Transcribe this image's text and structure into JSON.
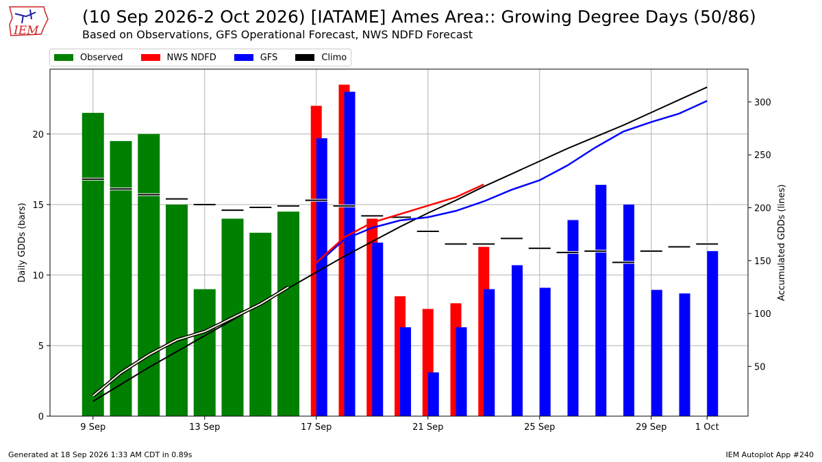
{
  "header": {
    "title": "(10 Sep 2026-2 Oct 2026) [IATAME] Ames Area:: Growing Degree Days (50/86)",
    "subtitle": "Based on Observations, GFS Operational Forecast, NWS NDFD Forecast",
    "logo_text": "IEM"
  },
  "footer": {
    "left": "Generated at 18 Sep 2026 1:33 AM CDT in 0.89s",
    "right": "IEM Autoplot App #240"
  },
  "colors": {
    "observed": "#008000",
    "ndfd": "#ff0000",
    "gfs": "#0000ff",
    "climo": "#000000",
    "grid": "#b0b0b0",
    "logo": "#cc2222"
  },
  "chart_data": {
    "type": "bar",
    "ylabel_left": "Daily GDDs (bars)",
    "ylabel_right": "Accumulated GDDs (lines)",
    "ylim_left": [
      0,
      24.6
    ],
    "ylim_right": [
      3,
      331
    ],
    "yticks_left": [
      0,
      5,
      10,
      15,
      20
    ],
    "yticks_right": [
      50,
      100,
      150,
      200,
      250,
      300
    ],
    "x_start": "8 Sep",
    "x_end": "4 Oct",
    "xticks": [
      {
        "day": 1,
        "label": "9 Sep"
      },
      {
        "day": 5,
        "label": "13 Sep"
      },
      {
        "day": 9,
        "label": "17 Sep"
      },
      {
        "day": 13,
        "label": "21 Sep"
      },
      {
        "day": 17,
        "label": "25 Sep"
      },
      {
        "day": 21,
        "label": "29 Sep"
      },
      {
        "day": 23,
        "label": "1 Oct"
      }
    ],
    "grid": true,
    "legend_position": "top-left above plot",
    "legend": [
      "Observed",
      "NWS NDFD",
      "GFS",
      "Climo"
    ],
    "observed": {
      "name": "Observed",
      "dates": [
        "10 Sep",
        "11 Sep",
        "12 Sep",
        "13 Sep",
        "14 Sep",
        "15 Sep",
        "16 Sep",
        "17 Sep"
      ],
      "daily": [
        21.5,
        19.5,
        20.0,
        15.0,
        9.0,
        14.0,
        13.0,
        14.5
      ],
      "accum": [
        22,
        44,
        61,
        75,
        83,
        96,
        109,
        125
      ]
    },
    "ndfd": {
      "name": "NWS NDFD",
      "dates": [
        "18 Sep",
        "19 Sep",
        "20 Sep",
        "21 Sep",
        "22 Sep",
        "23 Sep",
        "24 Sep"
      ],
      "daily": [
        22.0,
        23.5,
        14.0,
        8.5,
        7.6,
        8.0,
        12.0
      ],
      "accum": [
        148,
        172,
        186,
        194,
        202,
        210,
        222
      ]
    },
    "gfs": {
      "name": "GFS",
      "dates": [
        "18 Sep",
        "19 Sep",
        "20 Sep",
        "21 Sep",
        "22 Sep",
        "23 Sep",
        "24 Sep",
        "25 Sep",
        "26 Sep",
        "27 Sep",
        "28 Sep",
        "29 Sep",
        "30 Sep",
        "1 Oct",
        "2 Oct"
      ],
      "daily": [
        19.7,
        23.0,
        12.3,
        6.3,
        3.1,
        6.3,
        9.0,
        10.7,
        9.1,
        13.9,
        16.4,
        15.0,
        8.95,
        8.7,
        11.7
      ],
      "accum": [
        146,
        170,
        181,
        188,
        191,
        197,
        206,
        217,
        226,
        240,
        257,
        272,
        281,
        289,
        301
      ]
    },
    "climo": {
      "name": "Climo",
      "dates": [
        "10 Sep",
        "11 Sep",
        "12 Sep",
        "13 Sep",
        "14 Sep",
        "15 Sep",
        "16 Sep",
        "17 Sep",
        "18 Sep",
        "19 Sep",
        "20 Sep",
        "21 Sep",
        "22 Sep",
        "23 Sep",
        "24 Sep",
        "25 Sep",
        "26 Sep",
        "27 Sep",
        "28 Sep",
        "29 Sep",
        "30 Sep",
        "1 Oct",
        "2 Oct"
      ],
      "daily": [
        16.8,
        16.1,
        15.7,
        15.4,
        15.0,
        14.6,
        14.8,
        14.9,
        15.3,
        14.9,
        14.2,
        14.1,
        13.1,
        12.2,
        12.2,
        12.6,
        11.9,
        11.6,
        11.7,
        10.9,
        11.7,
        12.0,
        12.2
      ],
      "accum": [
        17,
        33,
        49,
        64,
        79,
        94,
        109,
        124,
        139,
        154,
        168,
        182,
        195,
        207,
        220,
        232,
        244,
        256,
        267,
        278,
        290,
        302,
        314
      ]
    }
  }
}
